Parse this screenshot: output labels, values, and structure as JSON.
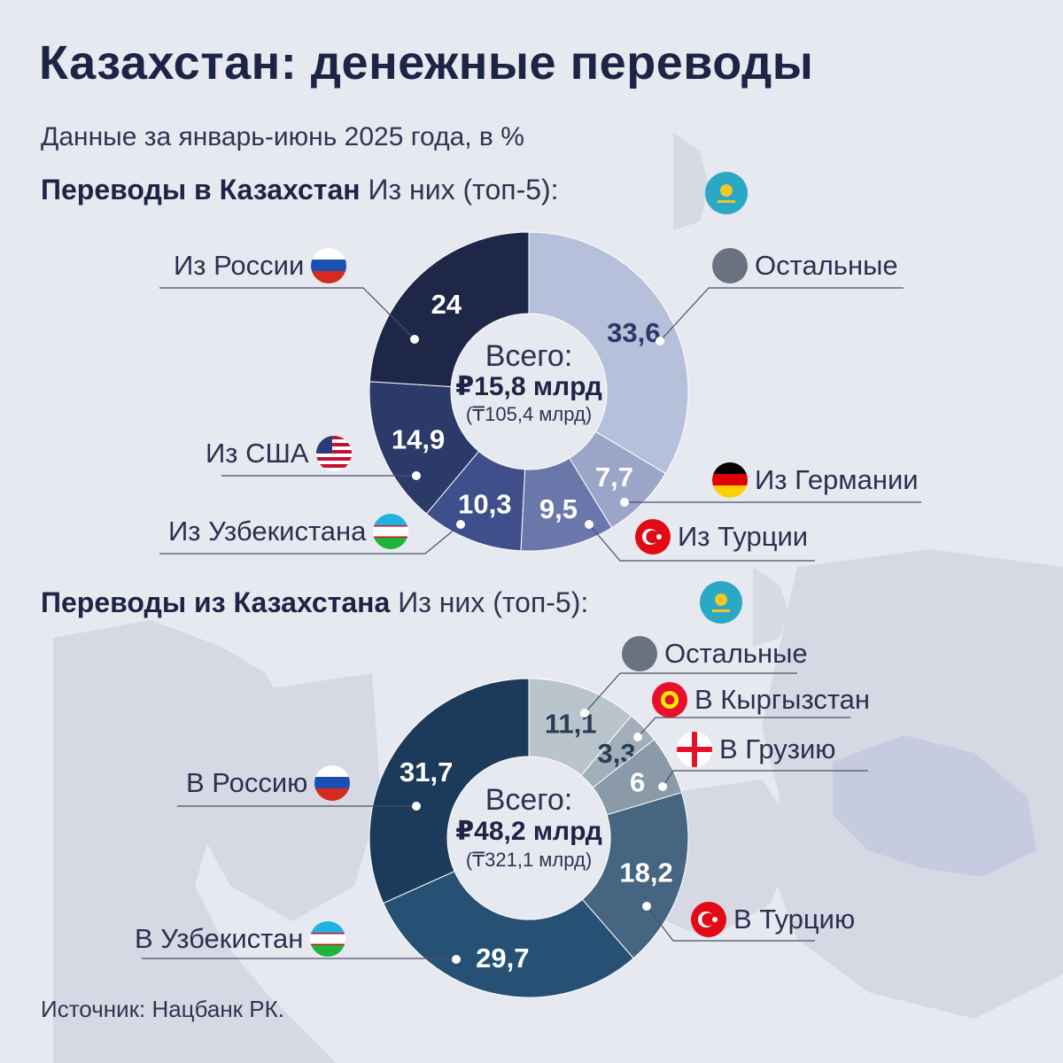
{
  "title": "Казахстан: денежные переводы",
  "subtitle": "Данные за январь-июнь 2025 года, в %",
  "source": "Источник: Нацбанк РК.",
  "colors": {
    "background": "#e7e9f1",
    "title": "#1d2546",
    "inbound": [
      "#1f2748",
      "#2c3a6a",
      "#3e4f8b",
      "#6a77ab",
      "#9aa5c8",
      "#b6c0db"
    ],
    "outbound": [
      "#1c3a59",
      "#265175",
      "#466580",
      "#8a9aa8",
      "#a2afbb",
      "#b9c4cd"
    ]
  },
  "sections": {
    "inbound": {
      "heading": "Переводы в Казахстан",
      "note": "Из них (топ-5):",
      "flag_icon": "kazakhstan-flag-icon",
      "center": {
        "line1": "Всего:",
        "line2": "₽15,8 млрд",
        "line3": "(₸105,4 млрд)"
      }
    },
    "outbound": {
      "heading": "Переводы из Казахстана",
      "note": "Из них (топ-5):",
      "flag_icon": "kazakhstan-flag-icon",
      "center": {
        "line1": "Всего:",
        "line2": "₽48,2 млрд",
        "line3": "(₸321,1 млрд)"
      }
    }
  },
  "chart_data": [
    {
      "type": "pie",
      "title": "Переводы в Казахстан",
      "total": "₽15,8 млрд",
      "series": [
        {
          "label": "Из России",
          "value": 24,
          "text": "24",
          "flag": "russia-flag-icon"
        },
        {
          "label": "Из США",
          "value": 14.9,
          "text": "14,9",
          "flag": "usa-flag-icon"
        },
        {
          "label": "Из Узбекистана",
          "value": 10.3,
          "text": "10,3",
          "flag": "uzbekistan-flag-icon"
        },
        {
          "label": "Из Турции",
          "value": 9.5,
          "text": "9,5",
          "flag": "turkey-flag-icon"
        },
        {
          "label": "Из Германии",
          "value": 7.7,
          "text": "7,7",
          "flag": "germany-flag-icon"
        },
        {
          "label": "Остальные",
          "value": 33.6,
          "text": "33,6",
          "flag": "other-dot-icon"
        }
      ]
    },
    {
      "type": "pie",
      "title": "Переводы из Казахстана",
      "total": "₽48,2 млрд",
      "series": [
        {
          "label": "В Россию",
          "value": 31.7,
          "text": "31,7",
          "flag": "russia-flag-icon"
        },
        {
          "label": "В Узбекистан",
          "value": 29.7,
          "text": "29,7",
          "flag": "uzbekistan-flag-icon"
        },
        {
          "label": "В Турцию",
          "value": 18.2,
          "text": "18,2",
          "flag": "turkey-flag-icon"
        },
        {
          "label": "В Грузию",
          "value": 6,
          "text": "6",
          "flag": "georgia-flag-icon"
        },
        {
          "label": "В Кыргызстан",
          "value": 3.3,
          "text": "3,3",
          "flag": "kyrgyzstan-flag-icon"
        },
        {
          "label": "Остальные",
          "value": 11.1,
          "text": "11,1",
          "flag": "other-dot-icon"
        }
      ]
    }
  ]
}
